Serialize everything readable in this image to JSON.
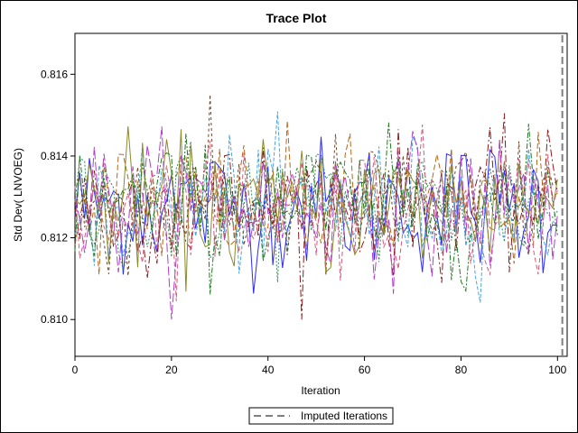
{
  "chart_data": {
    "type": "line",
    "title": "Trace Plot",
    "xlabel": "Iteration",
    "ylabel": "Std Dev( LNVOEG)",
    "xlim": [
      0,
      102
    ],
    "ylim": [
      0.8091,
      0.817
    ],
    "x_ticks": [
      0,
      20,
      40,
      60,
      80,
      100
    ],
    "y_ticks": [
      0.81,
      0.812,
      0.814,
      0.816
    ],
    "y_tick_labels": [
      "0.810",
      "0.812",
      "0.814",
      "0.816"
    ],
    "x_tick_labels": [
      "0",
      "20",
      "40",
      "60",
      "80",
      "100"
    ],
    "imputed_iteration_marker": 101,
    "legend": {
      "placement": "bottom-center",
      "entries": [
        {
          "label": "Imputed Iterations",
          "style": "dashed",
          "color": "#7f7f7f"
        }
      ]
    },
    "grid": false,
    "series_colors": [
      "#2a2aff",
      "#b5651d",
      "#2e8b57",
      "#8b1a1a",
      "#4aa3df",
      "#b03fc9",
      "#8a8a2a",
      "#6b4226",
      "#1f7a1f",
      "#d45a7a"
    ],
    "series_count": 10,
    "iterations": 101,
    "value_center": 0.8128,
    "value_spread": 0.0011
  }
}
